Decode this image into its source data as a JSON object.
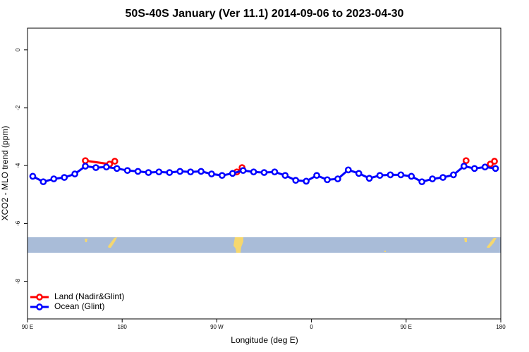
{
  "chart_data": {
    "type": "line",
    "title": "50S-40S January (Ver 11.1)   2014-09-06 to 2023-04-30",
    "xlabel": "Longitude (deg E)",
    "ylabel": "XCO2 - MLO trend (ppm)",
    "xlim": [
      90,
      540
    ],
    "ylim": [
      -9.3,
      0.75
    ],
    "xticks": [
      {
        "value": 90,
        "label": "90 E"
      },
      180,
      {
        "value": 270,
        "label": "90 W"
      },
      {
        "value": 360,
        "label": "0"
      },
      {
        "value": 450,
        "label": "90 E"
      },
      {
        "value": 540,
        "label": "180"
      }
    ],
    "yticks": [
      0,
      -2,
      -4,
      -6,
      -8
    ],
    "legend": "bottom-left",
    "series": [
      {
        "name": "Land (Nadir&Glint)",
        "color": "#ff0000",
        "x": [
          145,
          168,
          173,
          230,
          289,
          294,
          400,
          507,
          520,
          530,
          534
        ],
        "values": [
          -3.83,
          -3.95,
          -3.85,
          null,
          -4.22,
          -4.07,
          null,
          -3.83,
          null,
          -3.95,
          -3.85
        ]
      },
      {
        "name": "Ocean (Glint)",
        "color": "#0000ff",
        "x": [
          95,
          105,
          115,
          125,
          135,
          145,
          155,
          165,
          175,
          185,
          195,
          205,
          215,
          225,
          235,
          245,
          255,
          265,
          275,
          285,
          295,
          305,
          315,
          325,
          335,
          345,
          355,
          365,
          375,
          385,
          395,
          405,
          415,
          425,
          435,
          445,
          455,
          465,
          475,
          485,
          495,
          505,
          515,
          525,
          535
        ],
        "values": [
          -4.37,
          -4.56,
          -4.46,
          -4.41,
          -4.29,
          -4.02,
          -4.07,
          -4.05,
          -4.1,
          -4.17,
          -4.2,
          -4.24,
          -4.22,
          -4.24,
          -4.2,
          -4.22,
          -4.2,
          -4.29,
          -4.34,
          -4.27,
          -4.17,
          -4.22,
          -4.24,
          -4.22,
          -4.34,
          -4.51,
          -4.54,
          -4.34,
          -4.49,
          -4.46,
          -4.15,
          -4.27,
          -4.44,
          -4.34,
          -4.32,
          -4.32,
          -4.37,
          -4.56,
          -4.46,
          -4.41,
          -4.32,
          -4.02,
          -4.1,
          -4.05,
          -4.1
        ]
      }
    ]
  }
}
